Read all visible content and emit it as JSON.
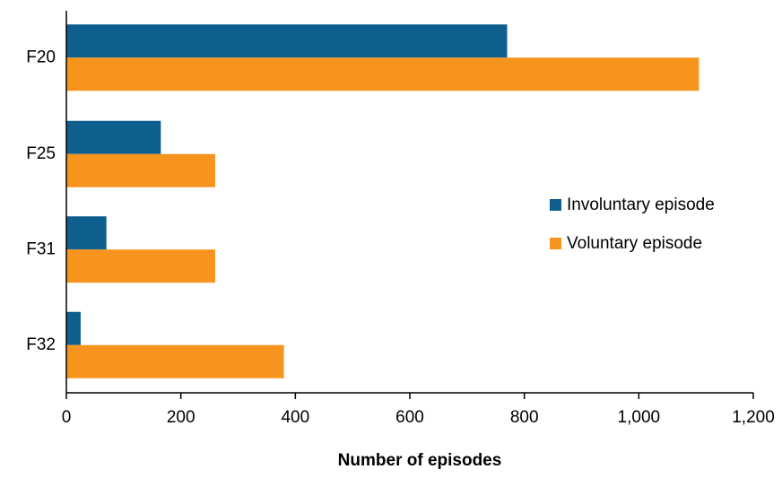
{
  "chart_data": {
    "type": "bar",
    "orientation": "horizontal",
    "x_label": "Number of episodes",
    "categories": [
      "F20",
      "F25",
      "F31",
      "F32"
    ],
    "series": [
      {
        "name": "Involuntary episode",
        "color": "#0e5f8e",
        "values": [
          770,
          165,
          70,
          25
        ]
      },
      {
        "name": "Voluntary episode",
        "color": "#f7941d",
        "values": [
          1105,
          260,
          260,
          380
        ]
      }
    ],
    "xlim": [
      0,
      1200
    ],
    "xticks": [
      0,
      200,
      400,
      600,
      800,
      {
        "value": 1000,
        "label": "1,000"
      },
      {
        "value": 1200,
        "label": "1,200"
      }
    ],
    "legend": "right"
  }
}
